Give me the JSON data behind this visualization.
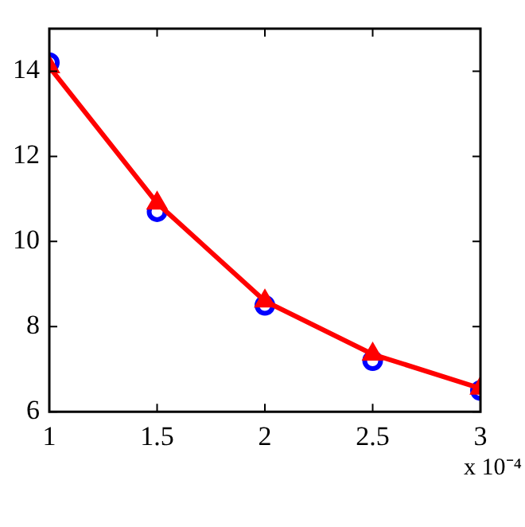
{
  "chart_data": {
    "type": "line",
    "x": [
      1,
      1.5,
      2,
      2.5,
      3
    ],
    "xlim": [
      1,
      3
    ],
    "xticks": [
      1,
      1.5,
      2,
      2.5,
      3
    ],
    "ylim": [
      6,
      15
    ],
    "yticks": [
      6,
      8,
      10,
      12,
      14
    ],
    "annotations": [
      "x 10⁻⁴"
    ],
    "series": [
      {
        "type": "scatter",
        "color": "#0000ff",
        "marker": "circle",
        "values": [
          14.2,
          10.7,
          8.5,
          7.2,
          6.5
        ]
      },
      {
        "type": "line",
        "color": "#ff0000",
        "marker": "triangle",
        "values": [
          14.1,
          10.9,
          8.6,
          7.35,
          6.55
        ]
      }
    ]
  }
}
